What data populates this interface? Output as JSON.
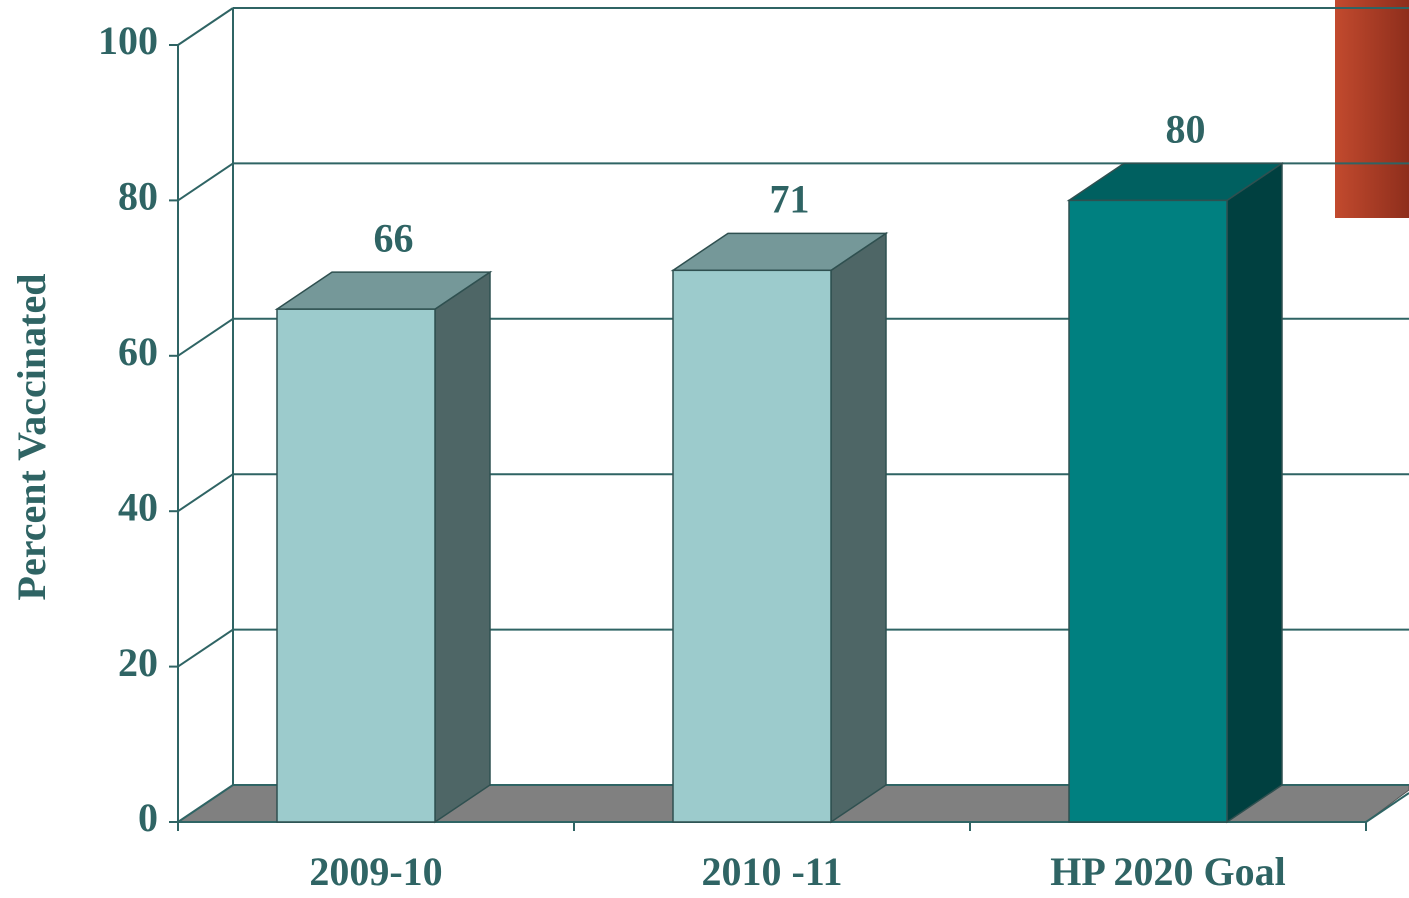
{
  "chart_data": {
    "type": "bar3d",
    "y_label": "Percent Vaccinated",
    "categories": [
      "2009-10",
      "2010 -11",
      "HP 2020 Goal"
    ],
    "values": [
      66,
      71,
      80
    ],
    "colors": [
      "#9ccbcc",
      "#9ccbcc",
      "#008080"
    ],
    "ylim": [
      0,
      100
    ],
    "yticks": [
      0,
      20,
      40,
      60,
      80,
      100
    ],
    "grid": true
  }
}
